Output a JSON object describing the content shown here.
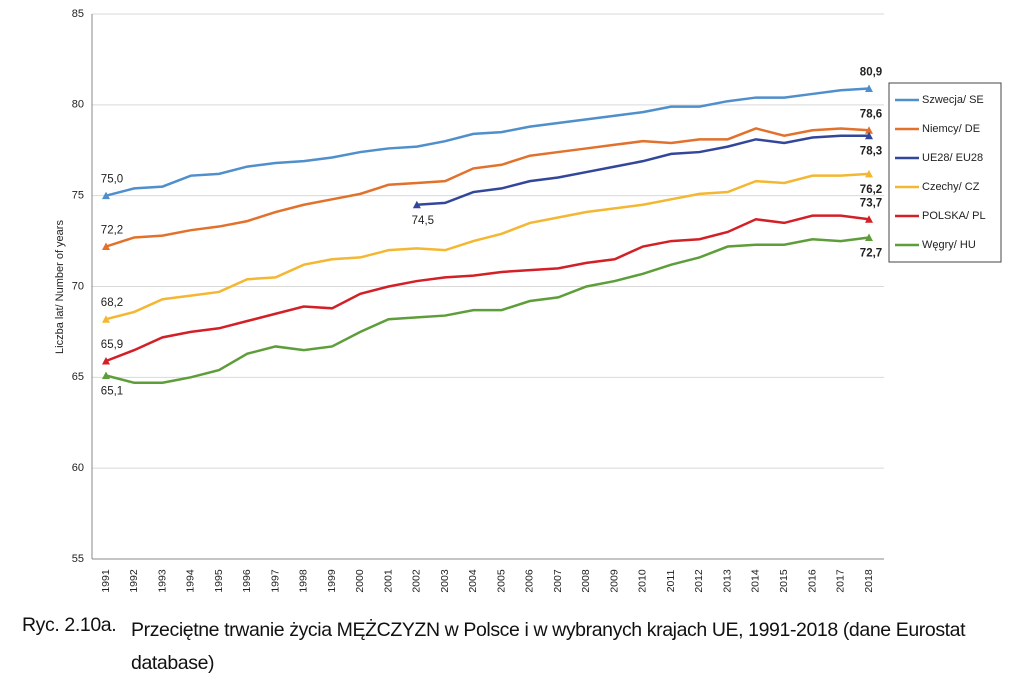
{
  "chart_data": {
    "type": "line",
    "y_label": "Liczba lat/ Number of years",
    "figure_number": "Ryc. 2.10a.",
    "title": "Przeciętne trwanie życia MĘŻCZYZN w Polsce i w wybranych krajach UE, 1991-2018 (dane Eurostat database)",
    "categories": [
      "1991",
      "1992",
      "1993",
      "1994",
      "1995",
      "1996",
      "1997",
      "1998",
      "1999",
      "2000",
      "2001",
      "2002",
      "2003",
      "2004",
      "2005",
      "2006",
      "2007",
      "2008",
      "2009",
      "2010",
      "2011",
      "2012",
      "2013",
      "2014",
      "2015",
      "2016",
      "2017",
      "2018"
    ],
    "ylim": [
      55,
      85
    ],
    "yticks": [
      55,
      60,
      65,
      70,
      75,
      80,
      85
    ],
    "grid": true,
    "legend": "right",
    "series": [
      {
        "name": "Szwecja/ SE",
        "color": "#4f8fcc",
        "values": [
          75.0,
          75.4,
          75.5,
          76.1,
          76.2,
          76.6,
          76.8,
          76.9,
          77.1,
          77.4,
          77.6,
          77.7,
          78.0,
          78.4,
          78.5,
          78.8,
          79.0,
          79.2,
          79.4,
          79.6,
          79.9,
          79.9,
          80.2,
          80.4,
          80.4,
          80.6,
          80.8,
          80.9
        ],
        "value_labels": [
          "75,0",
          null,
          null,
          null,
          null,
          null,
          null,
          null,
          null,
          null,
          null,
          null,
          null,
          null,
          null,
          null,
          null,
          null,
          null,
          null,
          null,
          null,
          null,
          null,
          null,
          null,
          null,
          "80,9"
        ]
      },
      {
        "name": "Niemcy/ DE",
        "color": "#e2712b",
        "values": [
          72.2,
          72.7,
          72.8,
          73.1,
          73.3,
          73.6,
          74.1,
          74.5,
          74.8,
          75.1,
          75.6,
          75.7,
          75.8,
          76.5,
          76.7,
          77.2,
          77.4,
          77.6,
          77.8,
          78.0,
          77.9,
          78.1,
          78.1,
          78.7,
          78.3,
          78.6,
          78.7,
          78.6
        ],
        "value_labels": [
          "72,2",
          null,
          null,
          null,
          null,
          null,
          null,
          null,
          null,
          null,
          null,
          null,
          null,
          null,
          null,
          null,
          null,
          null,
          null,
          null,
          null,
          null,
          null,
          null,
          null,
          null,
          null,
          "78,6"
        ]
      },
      {
        "name": "UE28/ EU28",
        "color": "#33479a",
        "values": [
          null,
          null,
          null,
          null,
          null,
          null,
          null,
          null,
          null,
          null,
          null,
          74.5,
          74.6,
          75.2,
          75.4,
          75.8,
          76.0,
          76.3,
          76.6,
          76.9,
          77.3,
          77.4,
          77.7,
          78.1,
          77.9,
          78.2,
          78.3,
          78.3
        ],
        "value_labels": [
          null,
          null,
          null,
          null,
          null,
          null,
          null,
          null,
          null,
          null,
          null,
          "74,5",
          null,
          null,
          null,
          null,
          null,
          null,
          null,
          null,
          null,
          null,
          null,
          null,
          null,
          null,
          null,
          "78,3"
        ]
      },
      {
        "name": "Czechy/ CZ",
        "color": "#f4b731",
        "values": [
          68.2,
          68.6,
          69.3,
          69.5,
          69.7,
          70.4,
          70.5,
          71.2,
          71.5,
          71.6,
          72.0,
          72.1,
          72.0,
          72.5,
          72.9,
          73.5,
          73.8,
          74.1,
          74.3,
          74.5,
          74.8,
          75.1,
          75.2,
          75.8,
          75.7,
          76.1,
          76.1,
          76.2
        ],
        "value_labels": [
          "68,2",
          null,
          null,
          null,
          null,
          null,
          null,
          null,
          null,
          null,
          null,
          null,
          null,
          null,
          null,
          null,
          null,
          null,
          null,
          null,
          null,
          null,
          null,
          null,
          null,
          null,
          null,
          "76,2"
        ]
      },
      {
        "name": "POLSKA/ PL",
        "color": "#d32027",
        "values": [
          65.9,
          66.5,
          67.2,
          67.5,
          67.7,
          68.1,
          68.5,
          68.9,
          68.8,
          69.6,
          70.0,
          70.3,
          70.5,
          70.6,
          70.8,
          70.9,
          71.0,
          71.3,
          71.5,
          72.2,
          72.5,
          72.6,
          73.0,
          73.7,
          73.5,
          73.9,
          73.9,
          73.7
        ],
        "value_labels": [
          "65,9",
          null,
          null,
          null,
          null,
          null,
          null,
          null,
          null,
          null,
          null,
          null,
          null,
          null,
          null,
          null,
          null,
          null,
          null,
          null,
          null,
          null,
          null,
          null,
          null,
          null,
          null,
          "73,7"
        ]
      },
      {
        "name": "Węgry/ HU",
        "color": "#5e9e3a",
        "values": [
          65.1,
          64.7,
          64.7,
          65.0,
          65.4,
          66.3,
          66.7,
          66.5,
          66.7,
          67.5,
          68.2,
          68.3,
          68.4,
          68.7,
          68.7,
          69.2,
          69.4,
          70.0,
          70.3,
          70.7,
          71.2,
          71.6,
          72.2,
          72.3,
          72.3,
          72.6,
          72.5,
          72.7
        ],
        "value_labels": [
          "65,1",
          null,
          null,
          null,
          null,
          null,
          null,
          null,
          null,
          null,
          null,
          null,
          null,
          null,
          null,
          null,
          null,
          null,
          null,
          null,
          null,
          null,
          null,
          null,
          null,
          null,
          null,
          "72,7"
        ]
      }
    ]
  }
}
